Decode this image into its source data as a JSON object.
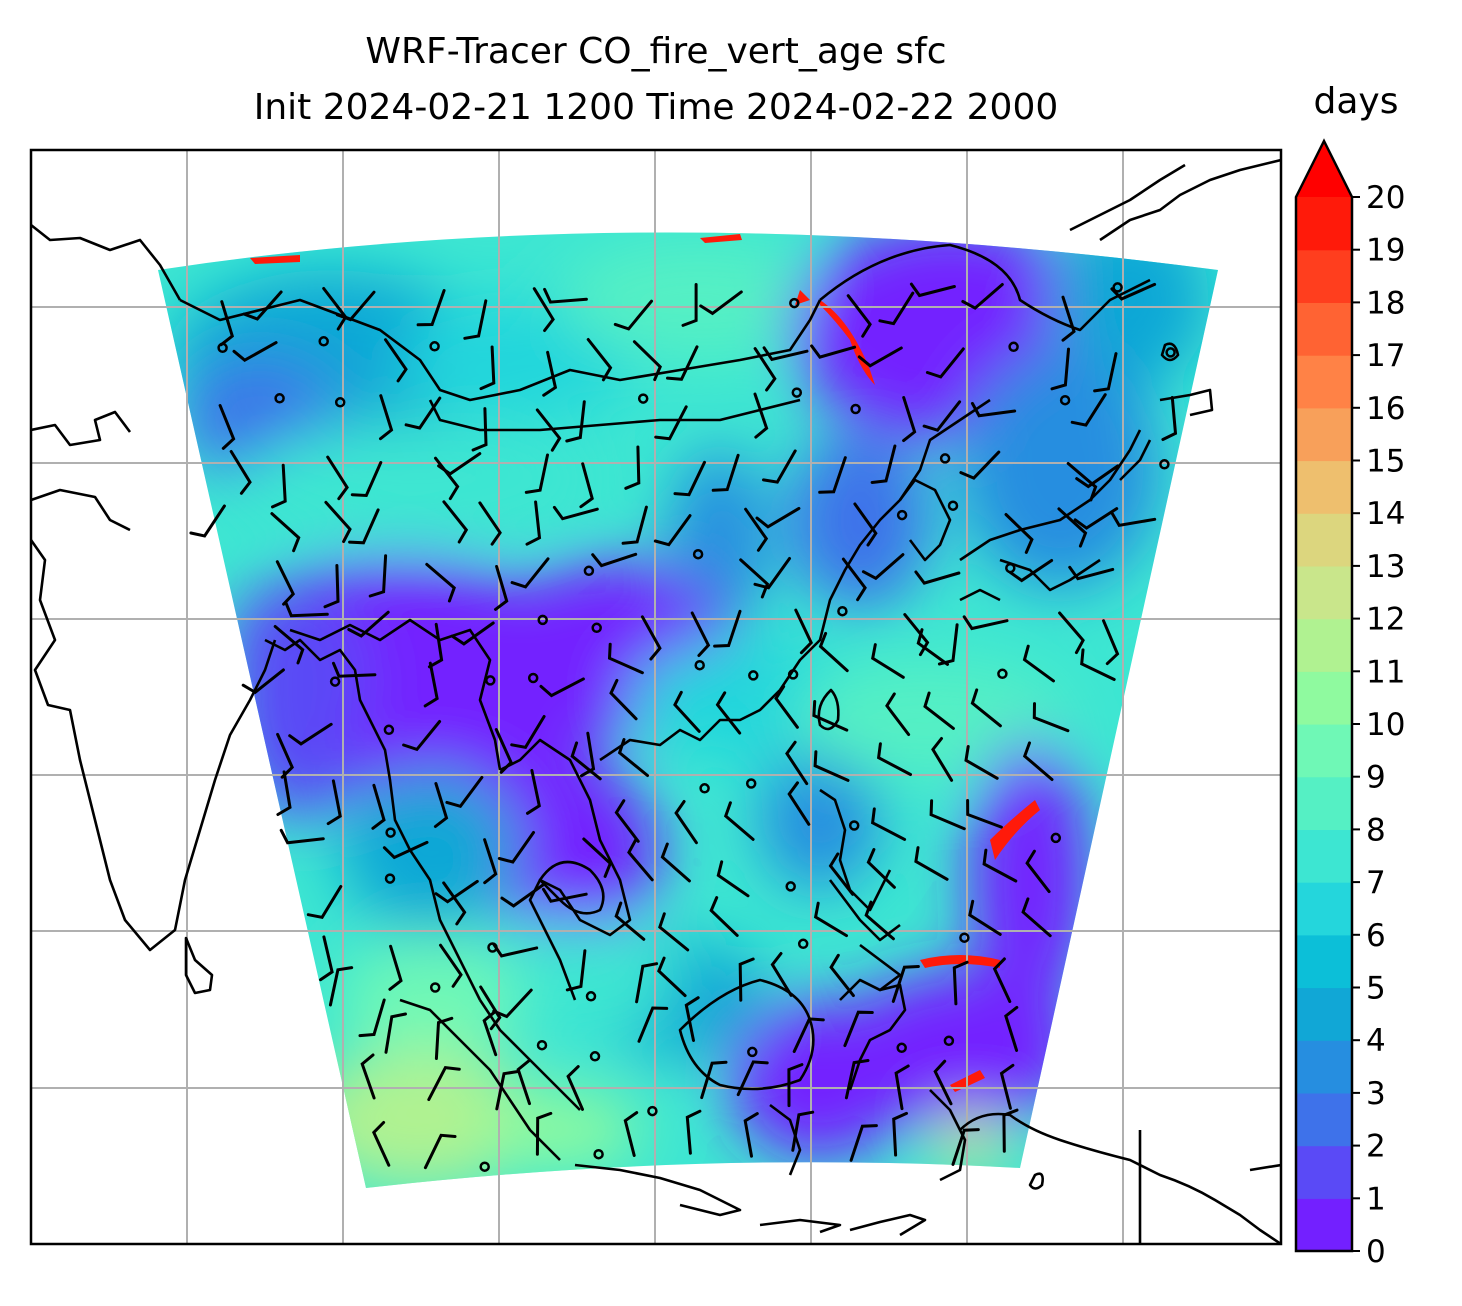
{
  "chart_data": {
    "type": "heatmap",
    "title_line1": "WRF-Tracer CO_fire_vert_age sfc",
    "title_line2": "Init 2024-02-21 1200 Time 2024-02-22 2000",
    "colorbar": {
      "label": "days",
      "min": 0,
      "max": 20,
      "step": 1,
      "extend": "max",
      "ticks": [
        "0",
        "1",
        "2",
        "3",
        "4",
        "5",
        "6",
        "7",
        "8",
        "9",
        "10",
        "11",
        "12",
        "13",
        "14",
        "15",
        "16",
        "17",
        "18",
        "19",
        "20"
      ],
      "colors": [
        "#7320ff",
        "#5a4af6",
        "#3e72ea",
        "#268ee0",
        "#11a7d6",
        "#0cbfd8",
        "#24d6dc",
        "#3de6d2",
        "#55f0c4",
        "#6ff8b6",
        "#8ffa9f",
        "#b0f291",
        "#c9e68b",
        "#dcd67e",
        "#eebf6e",
        "#f8a05a",
        "#ff8246",
        "#ff6333",
        "#ff3e1e",
        "#ff1a0a"
      ],
      "extend_color": "#ff0000"
    },
    "map": {
      "projection": "lambert-conformal",
      "gridlines": true,
      "coastlines": true,
      "wind_barbs": true
    }
  }
}
